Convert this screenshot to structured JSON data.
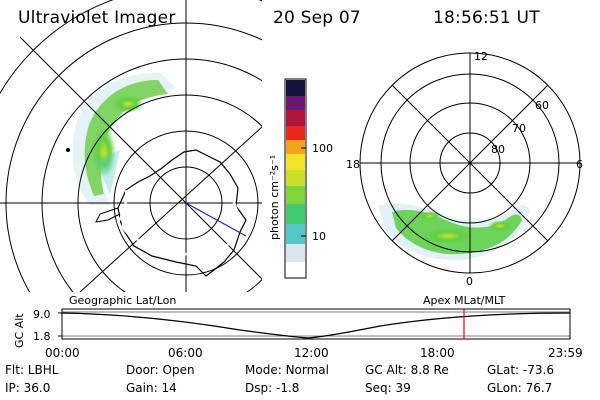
{
  "header": {
    "title": "Ultraviolet Imager",
    "date": "20 Sep 07",
    "time": "18:56:51 UT"
  },
  "colorbar": {
    "unit_label": "photon cm⁻²s⁻¹",
    "ticks": [
      "100",
      "10"
    ],
    "scale": "log",
    "colors": [
      "#ffffff",
      "#d9e6ef",
      "#54c8c8",
      "#3ecb6f",
      "#7fd63a",
      "#c8e02a",
      "#f3e526",
      "#f5a31a",
      "#e8281c",
      "#b0133c",
      "#6a1a6e",
      "#14143c"
    ]
  },
  "left_panel": {
    "label": "Geographic Lat/Lon",
    "grid": "on"
  },
  "right_panel": {
    "label": "Apex MLat/MLT",
    "mlt_labels": {
      "top": "12",
      "left": "18",
      "right": "6",
      "bottom": "0"
    },
    "mlat_labels": [
      "60",
      "70",
      "80"
    ]
  },
  "altitude_plot": {
    "ylabel": "GC Alt",
    "yticks": [
      "9.0",
      "1.8"
    ],
    "xticks": [
      "00:00",
      "06:00",
      "12:00",
      "18:00",
      "23:59"
    ],
    "marker_color": "#ff0000"
  },
  "info": {
    "row1": [
      {
        "label": "Flt:",
        "value": "LBHL"
      },
      {
        "label": "Door:",
        "value": "Open"
      },
      {
        "label": "Mode:",
        "value": "Normal"
      },
      {
        "label": "GC Alt:",
        "value": "8.8 Re"
      },
      {
        "label": "GLat:",
        "value": "-73.6"
      }
    ],
    "row2": [
      {
        "label": "IP:",
        "value": "36.0"
      },
      {
        "label": "Gain:",
        "value": "14"
      },
      {
        "label": "Dsp:",
        "value": "-1.8"
      },
      {
        "label": "Seq:",
        "value": "39"
      },
      {
        "label": "GLon:",
        "value": "76.7"
      }
    ]
  }
}
